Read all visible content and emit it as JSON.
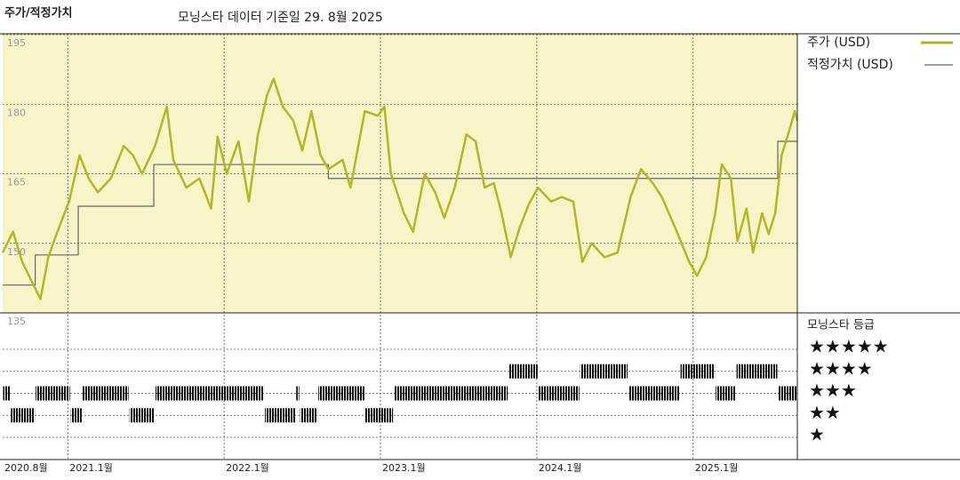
{
  "chart_data": {
    "type": "line",
    "title": "주가/적정가치",
    "subtitle": "모닝스타 데이터 기준일 29. 8월 2025",
    "xlim": [
      0,
      61
    ],
    "xticks": [
      {
        "value": 0,
        "label": "2020.8월"
      },
      {
        "value": 5,
        "label": "2021.1월"
      },
      {
        "value": 17,
        "label": "2022.1월"
      },
      {
        "value": 29,
        "label": "2023.1월"
      },
      {
        "value": 41,
        "label": "2024.1월"
      },
      {
        "value": 53,
        "label": "2025.1월"
      }
    ],
    "ylim": [
      135,
      195
    ],
    "yticks": [
      135,
      150,
      165,
      180,
      195
    ],
    "grid": true,
    "series": [
      {
        "name": "주가 (USD)",
        "color": "#b3b52b",
        "x": [
          0,
          0.8,
          1.5,
          2.9,
          3.5,
          4.2,
          5.1,
          5.9,
          6.6,
          7.3,
          8.3,
          9.3,
          10.0,
          10.7,
          11.7,
          12.6,
          13.1,
          14.1,
          15.1,
          16.0,
          16.5,
          17.2,
          18.1,
          18.9,
          19.6,
          20.3,
          20.8,
          21.5,
          22.3,
          23.0,
          23.7,
          24.4,
          25.0,
          26.1,
          26.7,
          27.8,
          28.8,
          29.3,
          29.8,
          30.8,
          31.5,
          32.4,
          33.2,
          33.9,
          34.7,
          35.6,
          36.3,
          37.0,
          37.7,
          38.3,
          39.0,
          39.7,
          40.4,
          41.1,
          42.1,
          42.9,
          43.8,
          44.5,
          45.2,
          46.2,
          47.2,
          48.2,
          49.0,
          49.9,
          50.6,
          51.6,
          52.7,
          53.3,
          54.0,
          54.7,
          55.2,
          55.9,
          56.4,
          57.1,
          57.6,
          58.3,
          58.8,
          59.3,
          59.8,
          60.4,
          60.8,
          61.0
        ],
        "values": [
          148,
          152.5,
          146,
          138,
          147,
          152.5,
          159,
          169,
          164,
          161,
          164,
          171,
          169,
          165,
          171,
          179.5,
          168,
          162,
          164,
          157.5,
          173,
          165,
          172,
          159,
          173.5,
          182,
          185.5,
          179.5,
          176.5,
          170,
          178.5,
          169,
          166,
          168,
          162,
          178.5,
          177.5,
          179.5,
          165,
          156.5,
          152.5,
          165,
          161,
          155.5,
          162,
          173.5,
          172,
          162,
          163,
          156.5,
          147,
          153.5,
          158.5,
          162,
          159,
          160,
          159,
          146,
          150,
          147,
          148,
          160,
          166,
          163,
          160,
          153.5,
          146,
          143,
          147,
          156.5,
          167,
          164,
          150.5,
          157.5,
          148,
          156.5,
          152,
          156.5,
          169,
          174.5,
          178.5,
          176.5
        ]
      },
      {
        "name": "적정가치 (USD)",
        "color": "#666666",
        "step": true,
        "x": [
          0,
          2.5,
          5.8,
          11.6,
          25.0,
          59.5
        ],
        "values": [
          141,
          147.5,
          158,
          167,
          164,
          172
        ]
      }
    ],
    "ratings_title": "모닝스타 등급",
    "rating_labels": [
      "★★★★★",
      "★★★★",
      "★★★",
      "★★",
      "★"
    ],
    "ratings": [
      {
        "from": 0,
        "to": 0.6,
        "rating": 3
      },
      {
        "from": 0.6,
        "to": 2.5,
        "rating": 2
      },
      {
        "from": 2.5,
        "to": 5.2,
        "rating": 3
      },
      {
        "from": 5.2,
        "to": 6.1,
        "rating": 2
      },
      {
        "from": 6.1,
        "to": 9.7,
        "rating": 3
      },
      {
        "from": 9.7,
        "to": 11.7,
        "rating": 2
      },
      {
        "from": 11.7,
        "to": 20.1,
        "rating": 3
      },
      {
        "from": 20.1,
        "to": 22.5,
        "rating": 2
      },
      {
        "from": 22.5,
        "to": 22.8,
        "rating": 3
      },
      {
        "from": 22.8,
        "to": 24.2,
        "rating": 2
      },
      {
        "from": 24.2,
        "to": 27.8,
        "rating": 3
      },
      {
        "from": 27.8,
        "to": 30,
        "rating": 2
      },
      {
        "from": 30,
        "to": 38.8,
        "rating": 3
      },
      {
        "from": 38.8,
        "to": 41.1,
        "rating": 4
      },
      {
        "from": 41.1,
        "to": 44.3,
        "rating": 3
      },
      {
        "from": 44.3,
        "to": 48,
        "rating": 4
      },
      {
        "from": 48,
        "to": 52,
        "rating": 3
      },
      {
        "from": 52,
        "to": 54.7,
        "rating": 4
      },
      {
        "from": 54.7,
        "to": 56.3,
        "rating": 3
      },
      {
        "from": 56.3,
        "to": 59.5,
        "rating": 4
      },
      {
        "from": 59.5,
        "to": 61,
        "rating": 3
      }
    ]
  }
}
